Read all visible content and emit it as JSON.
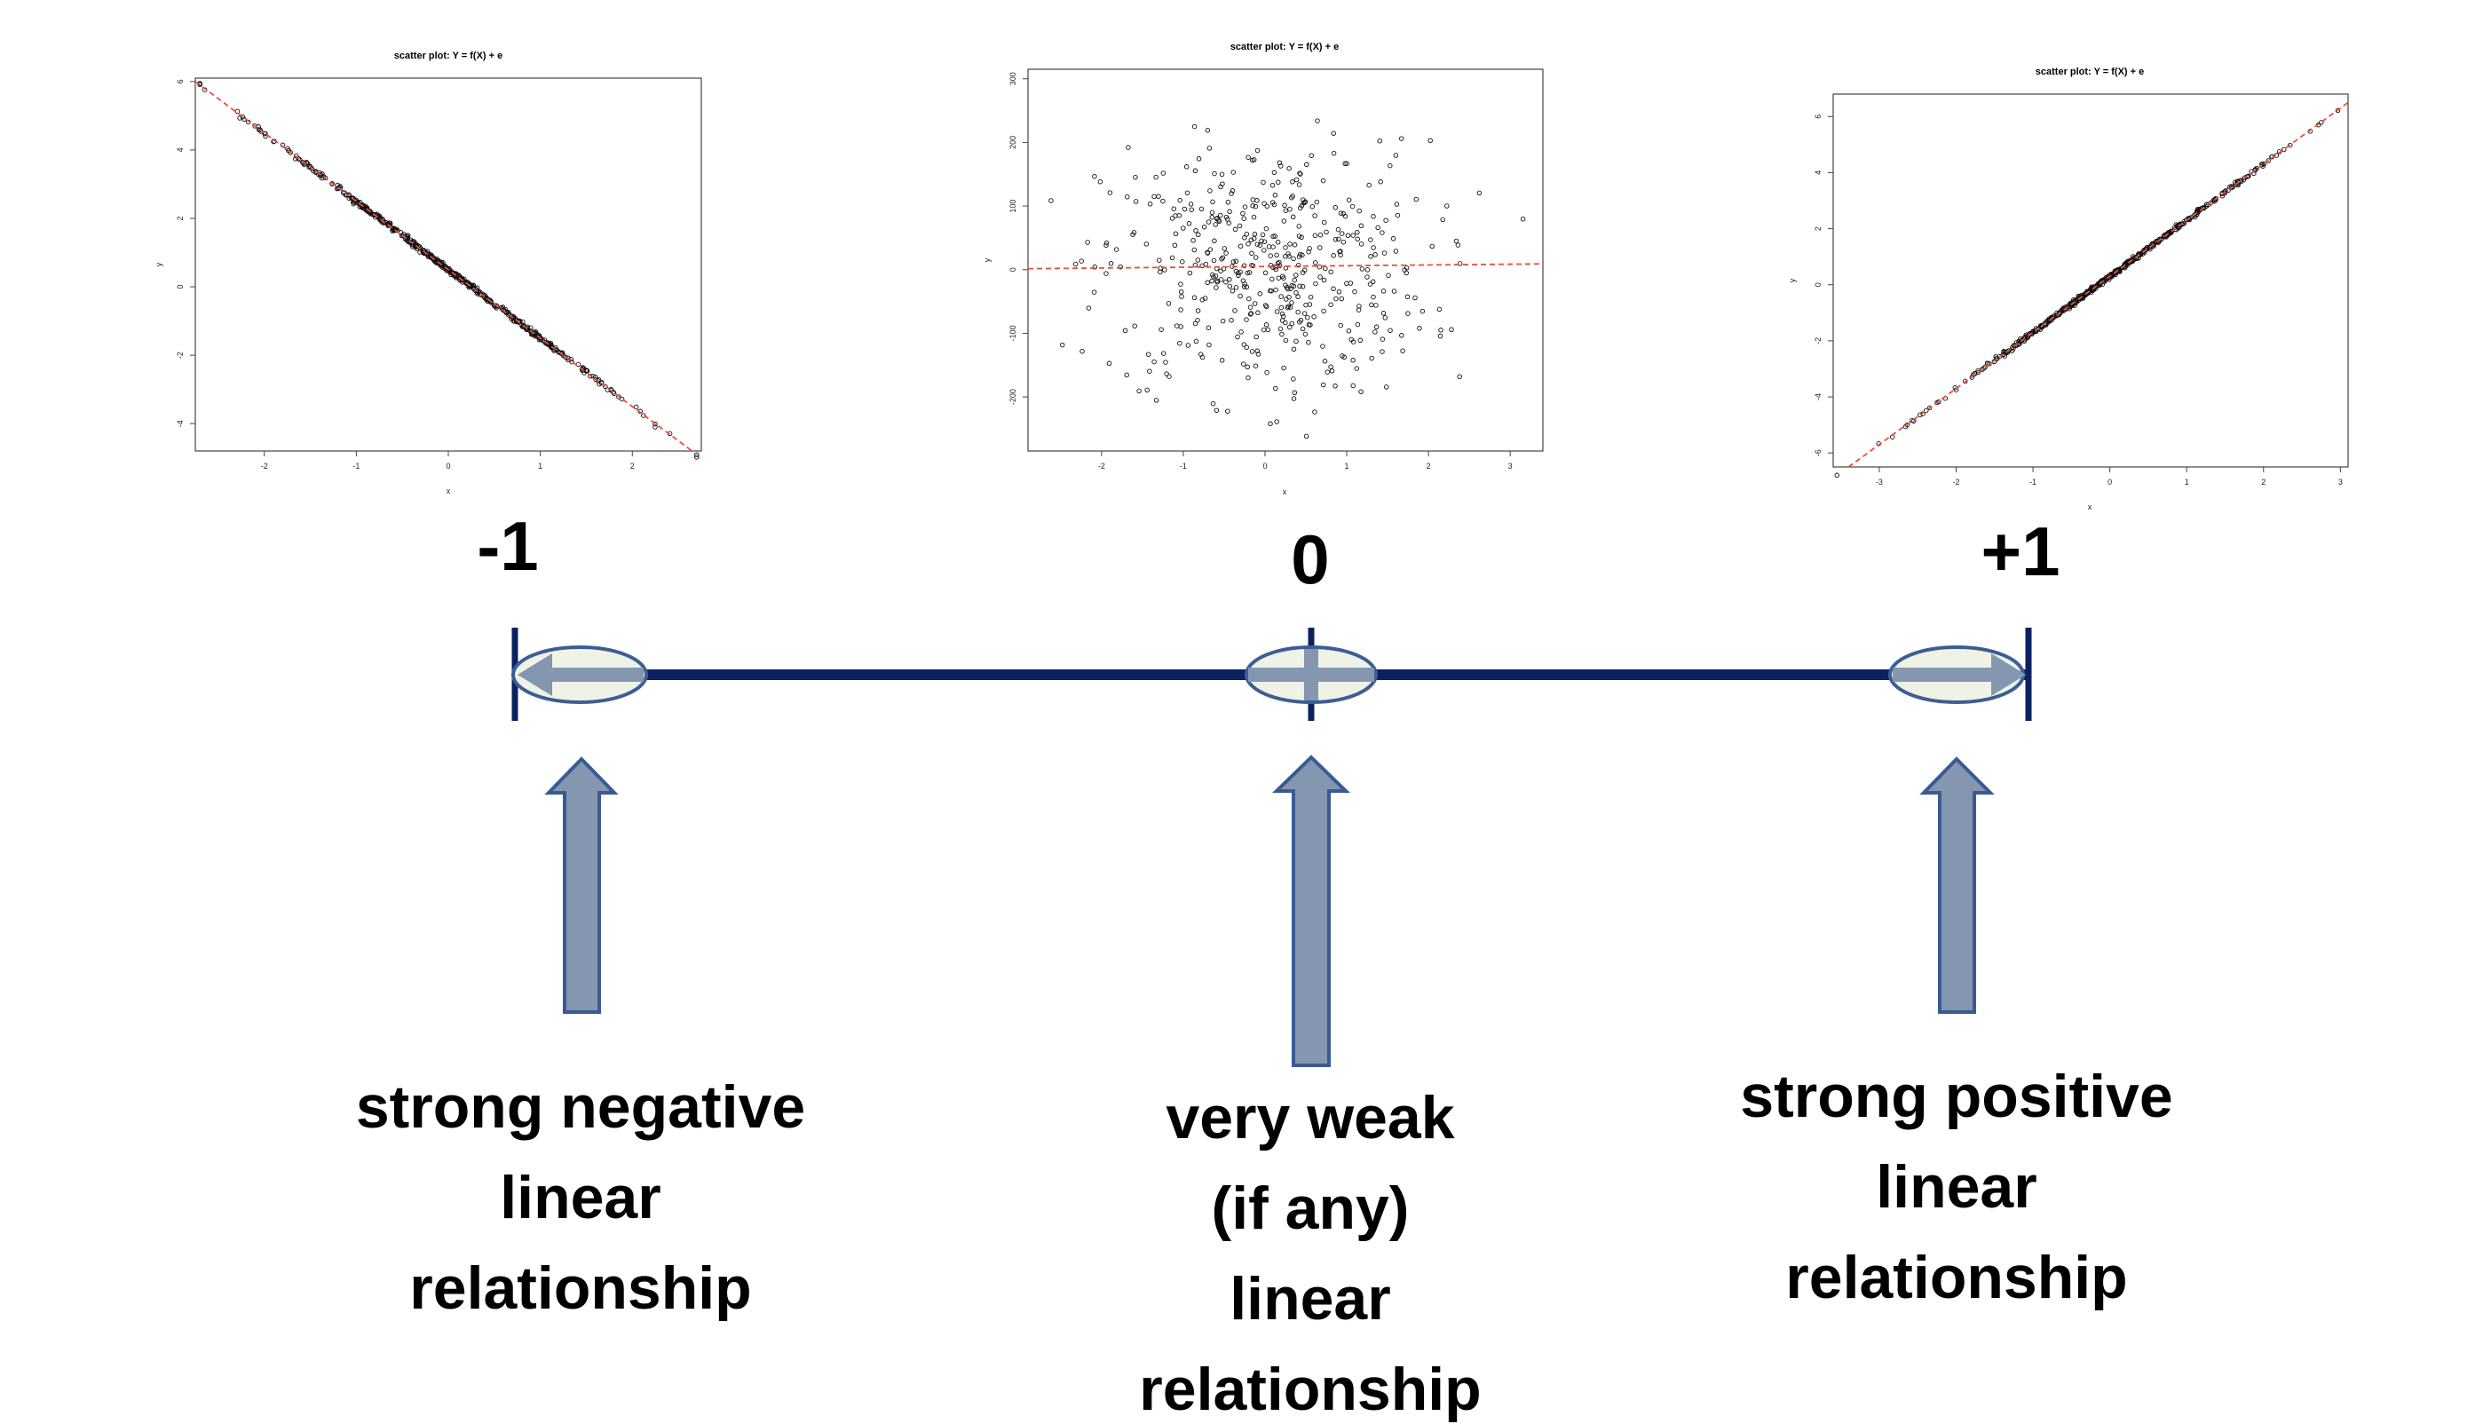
{
  "chart_data": [
    {
      "type": "scatter",
      "title": "scatter plot: Y = f(X) + e",
      "xlabel": "x",
      "ylabel": "y",
      "xlim": [
        -2.75,
        2.75
      ],
      "ylim": [
        -4.8,
        6.1
      ],
      "xticks": [
        "-2",
        "-1",
        "0",
        "1",
        "2"
      ],
      "yticks": [
        "-4",
        "-2",
        "0",
        "2",
        "4",
        "6"
      ],
      "fit_line": {
        "slope": -2.0,
        "intercept": 0.5,
        "color": "#e8503a",
        "style": "dashed"
      },
      "pattern": "points lie on a straight descending line"
    },
    {
      "type": "scatter",
      "title": "scatter plot: Y = f(X) + e",
      "xlabel": "x",
      "ylabel": "y",
      "xlim": [
        -2.9,
        3.4
      ],
      "ylim": [
        -285,
        315
      ],
      "xticks": [
        "-2",
        "-1",
        "0",
        "1",
        "2",
        "3"
      ],
      "yticks": [
        "-200",
        "-100",
        "0",
        "100",
        "200",
        "300"
      ],
      "fit_line": {
        "slope": 1.2,
        "intercept": 5,
        "color": "#e8503a",
        "style": "dashed"
      },
      "pattern": "random cloud, no linear trend"
    },
    {
      "type": "scatter",
      "title": "scatter plot: Y = f(X) + e",
      "xlabel": "x",
      "ylabel": "y",
      "xlim": [
        -3.6,
        3.1
      ],
      "ylim": [
        -6.5,
        6.8
      ],
      "xticks": [
        "-3",
        "-2",
        "-1",
        "0",
        "1",
        "2",
        "3"
      ],
      "yticks": [
        "-6",
        "-4",
        "-2",
        "0",
        "2",
        "4",
        "6"
      ],
      "fit_line": {
        "slope": 2.0,
        "intercept": 0.3,
        "color": "#e8503a",
        "style": "dashed"
      },
      "pattern": "points lie on a straight ascending line"
    }
  ],
  "scale": {
    "left_label": "-1",
    "center_label": "0",
    "right_label": "+1",
    "line_color": "#0b2160",
    "ellipse_fill": "#eef3e6",
    "ellipse_stroke": "#3d5e94",
    "arrow_fill": "#8496b0",
    "arrow_stroke": "#3a5a94"
  },
  "descriptions": {
    "left": [
      "strong negative",
      "linear",
      "relationship"
    ],
    "center": [
      "very weak",
      "(if any)",
      "linear",
      "relationship"
    ],
    "right": [
      "strong positive",
      "linear",
      "relationship"
    ]
  }
}
